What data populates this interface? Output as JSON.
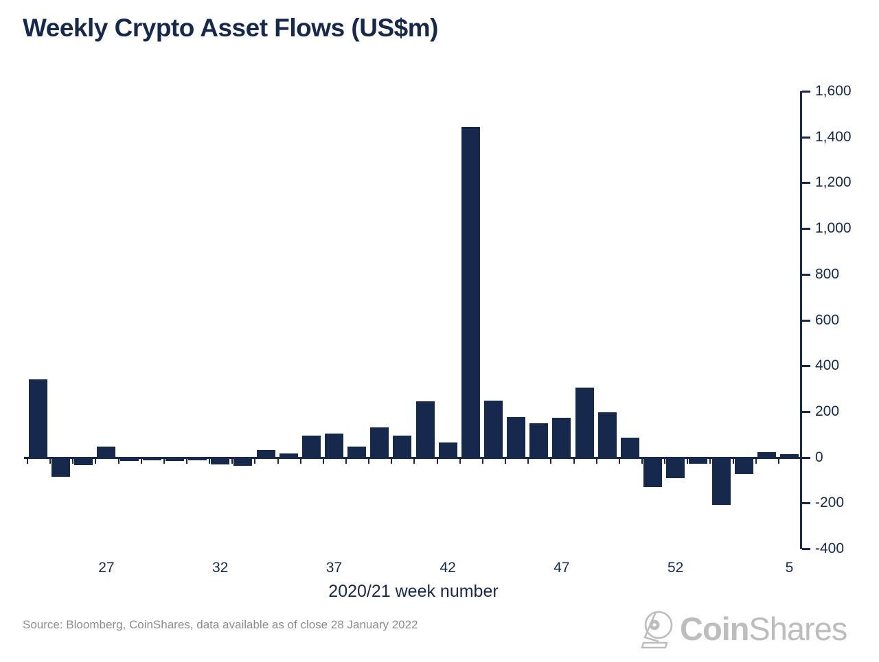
{
  "title": "Weekly Crypto Asset Flows (US$m)",
  "source_note": "Source: Bloomberg, CoinShares, data available as of close 28 January 2022",
  "logo": {
    "icon": "coinshares-helmet-icon",
    "bold": "Coin",
    "light": "Shares",
    "color": "#bdbdbd"
  },
  "colors": {
    "bar": "#16294c",
    "axis": "#16294c",
    "text_navy": "#16294c",
    "source_gray": "#8c8c8c",
    "logo_gray": "#bdbdbd",
    "background": "#ffffff"
  },
  "chart_data": {
    "type": "bar",
    "title": "Weekly Crypto Asset Flows (US$m)",
    "xlabel": "2020/21 week number",
    "ylabel": "",
    "x": [
      24,
      25,
      26,
      27,
      28,
      29,
      30,
      31,
      32,
      33,
      34,
      35,
      36,
      37,
      38,
      39,
      40,
      41,
      42,
      43,
      44,
      45,
      46,
      47,
      48,
      49,
      50,
      51,
      52,
      1,
      2,
      3,
      4,
      5
    ],
    "values": [
      342,
      -80,
      -31,
      48,
      -12,
      -10,
      -11,
      -8,
      -26,
      -32,
      34,
      18,
      95,
      105,
      47,
      133,
      95,
      245,
      66,
      1445,
      250,
      176,
      151,
      175,
      306,
      198,
      87,
      -127,
      -87,
      -24,
      -203,
      -69,
      24,
      16
    ],
    "x_tick_labels": [
      "27",
      "32",
      "37",
      "42",
      "47",
      "52",
      "5"
    ],
    "x_tick_indices": [
      3,
      8,
      13,
      18,
      23,
      28,
      33
    ],
    "y_tick_labels": [
      "1,600",
      "1,400",
      "1,200",
      "1,000",
      "800",
      "600",
      "400",
      "200",
      "0",
      "-200",
      "-400"
    ],
    "y_tick_values": [
      1600,
      1400,
      1200,
      1000,
      800,
      600,
      400,
      200,
      0,
      -200,
      -400
    ],
    "ylim": [
      -400,
      1600
    ],
    "grid": false,
    "legend": false,
    "bar_color": "#16294c",
    "y_axis_side": "right"
  }
}
